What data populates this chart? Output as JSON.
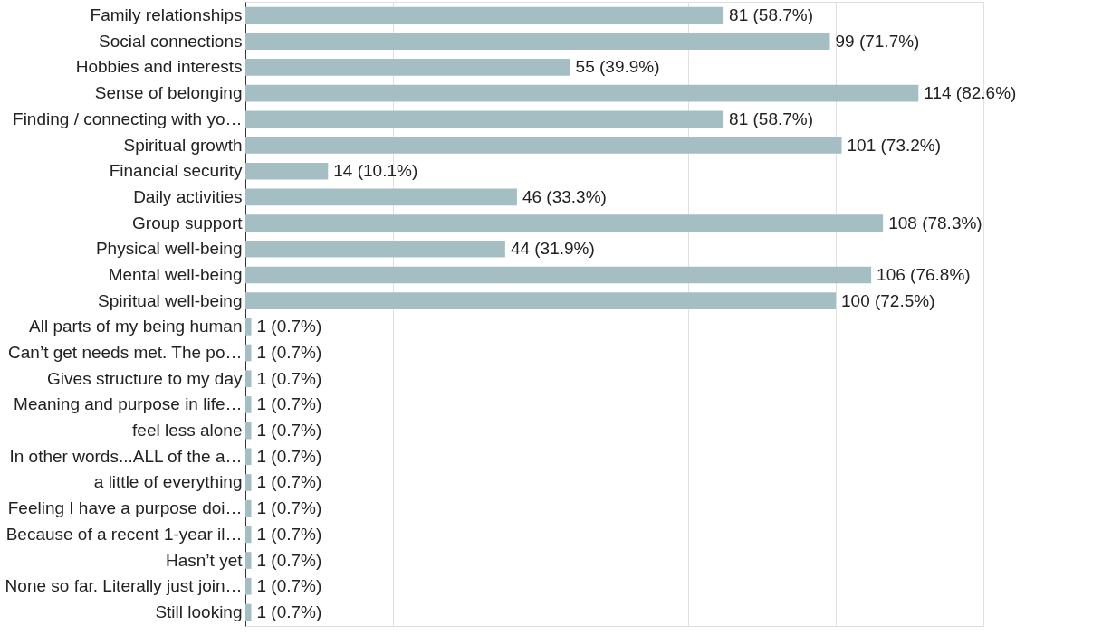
{
  "chart_data": {
    "type": "bar",
    "orientation": "horizontal",
    "categories": [
      "Family relationships",
      "Social connections",
      "Hobbies and interests",
      "Sense of belonging",
      "Finding / connecting with yo…",
      "Spiritual growth",
      "Financial security",
      "Daily activities",
      "Group support",
      "Physical well-being",
      "Mental well-being",
      "Spiritual well-being",
      "All parts of my being human",
      "Can’t get needs met. The po…",
      "Gives structure to my day",
      "Meaning and purpose in life…",
      "feel less alone",
      "In other words...ALL of the a…",
      "a little of everything",
      "Feeling I have a purpose doi…",
      "Because of a recent 1-year il…",
      "Hasn’t yet",
      "None so far. Literally just join…",
      "Still looking"
    ],
    "series": [
      {
        "color": "#a5bec3",
        "values": [
          81,
          99,
          55,
          114,
          81,
          101,
          14,
          46,
          108,
          44,
          106,
          100,
          1,
          1,
          1,
          1,
          1,
          1,
          1,
          1,
          1,
          1,
          1,
          1
        ],
        "value_labels": [
          "81 (58.7%)",
          "99 (71.7%)",
          "55 (39.9%)",
          "114 (82.6%)",
          "81 (58.7%)",
          "101 (73.2%)",
          "14 (10.1%)",
          "46 (33.3%)",
          "108 (78.3%)",
          "44 (31.9%)",
          "106 (76.8%)",
          "100 (72.5%)",
          "1 (0.7%)",
          "1 (0.7%)",
          "1 (0.7%)",
          "1 (0.7%)",
          "1 (0.7%)",
          "1 (0.7%)",
          "1 (0.7%)",
          "1 (0.7%)",
          "1 (0.7%)",
          "1 (0.7%)",
          "1 (0.7%)",
          "1 (0.7%)"
        ]
      }
    ],
    "xlim": [
      0,
      125
    ],
    "xticks": [
      {
        "value": 0,
        "label": null
      },
      {
        "value": 25,
        "label": null
      },
      {
        "value": 50,
        "label": null
      },
      {
        "value": 75,
        "label": null
      },
      {
        "value": 100,
        "label": null
      },
      {
        "value": 125,
        "label": null
      }
    ],
    "tick_labels": "y",
    "grid": "x"
  }
}
